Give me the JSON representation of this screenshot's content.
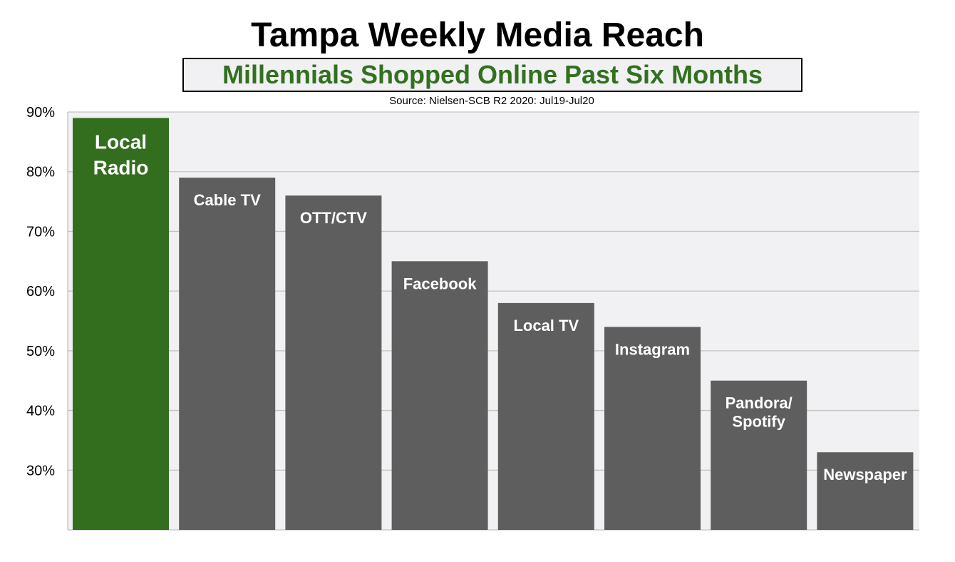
{
  "chart_data": {
    "type": "bar",
    "title": "Tampa Weekly Media Reach",
    "subtitle": "Millennials Shopped Online Past Six Months",
    "source": "Source: Nielsen-SCB R2 2020: Jul19-Jul20",
    "categories": [
      [
        "Local",
        "Radio"
      ],
      [
        "Cable TV"
      ],
      [
        "OTT/CTV"
      ],
      [
        "Facebook"
      ],
      [
        "Local TV"
      ],
      [
        "Instagram"
      ],
      [
        "Pandora/",
        "Spotify"
      ],
      [
        "Newspaper"
      ]
    ],
    "values": [
      89,
      79,
      76,
      65,
      58,
      54,
      45,
      33
    ],
    "colors": [
      "#336e1f",
      "#5e5e5e",
      "#5e5e5e",
      "#5e5e5e",
      "#5e5e5e",
      "#5e5e5e",
      "#5e5e5e",
      "#5e5e5e"
    ],
    "ylim": [
      20,
      90
    ],
    "yticks": [
      "30%",
      "40%",
      "50%",
      "60%",
      "70%",
      "80%",
      "90%"
    ],
    "ytick_values": [
      30,
      40,
      50,
      60,
      70,
      80,
      90
    ],
    "grid": true,
    "xlabel": "",
    "ylabel": ""
  }
}
